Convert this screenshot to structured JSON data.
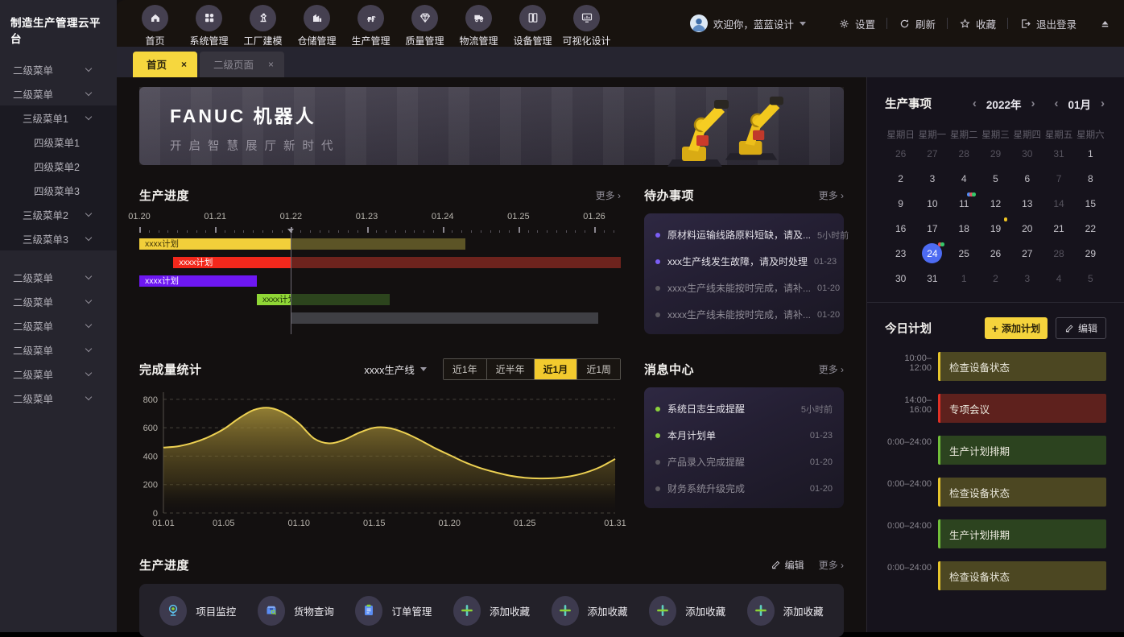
{
  "app": {
    "title": "制造生产管理云平台"
  },
  "sidebar": {
    "items": [
      {
        "label": "二级菜单",
        "level": 2,
        "chevron": true
      },
      {
        "label": "二级菜单",
        "level": 2,
        "chevron": true
      },
      {
        "label": "三级菜单1",
        "level": 3,
        "chevron": true,
        "group": true
      },
      {
        "label": "四级菜单1",
        "level": 4,
        "group": true
      },
      {
        "label": "四级菜单2",
        "level": 4,
        "group": true
      },
      {
        "label": "四级菜单3",
        "level": 4,
        "group": true
      },
      {
        "label": "三级菜单2",
        "level": 3,
        "chevron": true,
        "group": true
      },
      {
        "label": "三级菜单3",
        "level": 3,
        "chevron": true,
        "group": true
      },
      {
        "label": "二级菜单",
        "level": 2,
        "chevron": true,
        "gap": true
      },
      {
        "label": "二级菜单",
        "level": 2,
        "chevron": true
      },
      {
        "label": "二级菜单",
        "level": 2,
        "chevron": true
      },
      {
        "label": "二级菜单",
        "level": 2,
        "chevron": true
      },
      {
        "label": "二级菜单",
        "level": 2,
        "chevron": true
      },
      {
        "label": "二级菜单",
        "level": 2,
        "chevron": true
      }
    ]
  },
  "topnav": {
    "items": [
      {
        "label": "首页",
        "icon": "home"
      },
      {
        "label": "系统管理",
        "icon": "modules"
      },
      {
        "label": "工厂建模",
        "icon": "robot-arm"
      },
      {
        "label": "仓储管理",
        "icon": "warehouse"
      },
      {
        "label": "生产管理",
        "icon": "forklift"
      },
      {
        "label": "质量管理",
        "icon": "gem"
      },
      {
        "label": "物流管理",
        "icon": "truck"
      },
      {
        "label": "设备管理",
        "icon": "equipment"
      },
      {
        "label": "可视化设计",
        "icon": "visual-design"
      }
    ]
  },
  "header": {
    "welcome": "欢迎你，蓝蓝设计",
    "actions": [
      {
        "label": "设置",
        "icon": "gear"
      },
      {
        "label": "刷新",
        "icon": "refresh"
      },
      {
        "label": "收藏",
        "icon": "star"
      },
      {
        "label": "退出登录",
        "icon": "logout"
      }
    ]
  },
  "tabs": [
    {
      "label": "首页",
      "active": true
    },
    {
      "label": "二级页面",
      "active": false
    }
  ],
  "banner": {
    "title": "FANUC  机器人",
    "subtitle": "开启智慧展厅新时代"
  },
  "gantt": {
    "title": "生产进度",
    "more": "更多 ›",
    "day_labels": [
      "01.20",
      "01.21",
      "01.22",
      "01.23",
      "01.24",
      "01.25",
      "01.26"
    ],
    "span_days": 6.35,
    "marker_day": 2,
    "rows": [
      {
        "label": "xxxx计划",
        "start": 0,
        "split": 2,
        "end": 4.3,
        "bright": "#f2cf3a",
        "dim": "#5c5426",
        "text": "#3a3008"
      },
      {
        "label": "xxxx计划",
        "start": 0.45,
        "split": 2,
        "end": 6.35,
        "bright": "#f3281c",
        "dim": "#6e231d",
        "text": "#ffffff"
      },
      {
        "label": "xxxx计划",
        "start": 0,
        "split": 1.55,
        "end": 1.55,
        "bright": "#6d17f2",
        "dim": null,
        "text": "#ffffff"
      },
      {
        "label": "xxxx计划",
        "start": 1.55,
        "split": 2,
        "end": 3.3,
        "bright": "#8fd636",
        "dim": "#2c441d",
        "text": "#1d3107"
      },
      {
        "label": "",
        "start": 2,
        "split": 6.05,
        "end": 6.05,
        "bright": "#3f3f44",
        "dim": null,
        "text": "#ffffff"
      }
    ]
  },
  "todo": {
    "title": "待办事项",
    "more": "更多 ›",
    "items": [
      {
        "text": "原材料运输线路原料短缺，请及...",
        "time": "5小时前",
        "dot": "#7b5ef5",
        "unread": true
      },
      {
        "text": "xxx生产线发生故障，请及时处理",
        "time": "01-23",
        "dot": "#7b5ef5",
        "unread": true
      },
      {
        "text": "xxxx生产线未能按时完成，请补...",
        "time": "01-20",
        "dot": "#5a575f",
        "unread": false
      },
      {
        "text": "xxxx生产线未能按时完成，请补...",
        "time": "01-20",
        "dot": "#5a575f",
        "unread": false
      }
    ]
  },
  "completion": {
    "title": "完成量统计",
    "dropdown": "xxxx生产线",
    "ranges": [
      "近1年",
      "近半年",
      "近1月",
      "近1周"
    ],
    "active_range": "近1月"
  },
  "chart_data": {
    "type": "area",
    "title": "完成量统计",
    "x_days": [
      1,
      2,
      3,
      4,
      5,
      6,
      7,
      8,
      9,
      10,
      11,
      12,
      13,
      14,
      15,
      16,
      17,
      18,
      19,
      20,
      21,
      22,
      23,
      24,
      25,
      26,
      27,
      28,
      29,
      30,
      31
    ],
    "values": [
      460,
      470,
      495,
      535,
      590,
      665,
      725,
      740,
      705,
      630,
      525,
      490,
      515,
      565,
      600,
      598,
      565,
      515,
      458,
      408,
      358,
      318,
      288,
      263,
      248,
      243,
      246,
      258,
      283,
      323,
      380
    ],
    "xtick_days": [
      1,
      5,
      10,
      15,
      20,
      25,
      31
    ],
    "xtick_labels": [
      "01.01",
      "01.05",
      "01.10",
      "01.15",
      "01.20",
      "01.25",
      "01.31"
    ],
    "yticks": [
      0,
      200,
      400,
      600,
      800
    ],
    "ylim": [
      0,
      850
    ],
    "line_color": "#ecd052",
    "grid": true,
    "legend": false
  },
  "messages": {
    "title": "消息中心",
    "more": "更多 ›",
    "items": [
      {
        "text": "系统日志生成提醒",
        "time": "5小时前",
        "dot": "#8bd13c",
        "unread": true
      },
      {
        "text": "本月计划单",
        "time": "01-23",
        "dot": "#8bd13c",
        "unread": true
      },
      {
        "text": "产品录入完成提醒",
        "time": "01-20",
        "dot": "#5a575f",
        "unread": false
      },
      {
        "text": "财务系统升级完成",
        "time": "01-20",
        "dot": "#5a575f",
        "unread": false
      }
    ]
  },
  "calendar": {
    "title": "生产事项",
    "year": "2022年",
    "month": "01月",
    "weekdays": [
      "星期日",
      "星期一",
      "星期二",
      "星期三",
      "星期四",
      "星期五",
      "星期六"
    ],
    "selected_color": "#4d6bf2",
    "weeks": [
      [
        {
          "d": "26",
          "dim": true
        },
        {
          "d": "27",
          "dim": true
        },
        {
          "d": "28",
          "dim": true
        },
        {
          "d": "29",
          "dim": true
        },
        {
          "d": "30",
          "dim": true
        },
        {
          "d": "31",
          "dim": true
        },
        {
          "d": "1"
        }
      ],
      [
        {
          "d": "2"
        },
        {
          "d": "3"
        },
        {
          "d": "4"
        },
        {
          "d": "5"
        },
        {
          "d": "6"
        },
        {
          "d": "7",
          "dim": true
        },
        {
          "d": "8"
        }
      ],
      [
        {
          "d": "9"
        },
        {
          "d": "10"
        },
        {
          "d": "11",
          "dots": [
            "#4e8df5",
            "#e25563",
            "#35c96a"
          ]
        },
        {
          "d": "12"
        },
        {
          "d": "13"
        },
        {
          "d": "14",
          "dim": true
        },
        {
          "d": "15"
        }
      ],
      [
        {
          "d": "16"
        },
        {
          "d": "17"
        },
        {
          "d": "18"
        },
        {
          "d": "19",
          "dots": [
            "#f0c523"
          ]
        },
        {
          "d": "20"
        },
        {
          "d": "21"
        },
        {
          "d": "22"
        }
      ],
      [
        {
          "d": "23"
        },
        {
          "d": "24",
          "sel": true,
          "dots": [
            "#e2534f",
            "#35c96a"
          ]
        },
        {
          "d": "25"
        },
        {
          "d": "26"
        },
        {
          "d": "27"
        },
        {
          "d": "28",
          "dim": true
        },
        {
          "d": "29"
        }
      ],
      [
        {
          "d": "30"
        },
        {
          "d": "31"
        },
        {
          "d": "1",
          "dim": true
        },
        {
          "d": "2",
          "dim": true
        },
        {
          "d": "3",
          "dim": true
        },
        {
          "d": "4",
          "dim": true
        },
        {
          "d": "5",
          "dim": true
        }
      ]
    ]
  },
  "today_plan": {
    "title": "今日计划",
    "add_label": "添加计划",
    "edit_label": "编辑",
    "items": [
      {
        "time": "10:00–12:00",
        "label": "检查设备状态",
        "type": "yellow"
      },
      {
        "time": "14:00–16:00",
        "label": "专项会议",
        "type": "red"
      },
      {
        "time": "0:00–24:00",
        "label": "生产计划排期",
        "type": "green"
      },
      {
        "time": "0:00–24:00",
        "label": "检查设备状态",
        "type": "yellow"
      },
      {
        "time": "0:00–24:00",
        "label": "生产计划排期",
        "type": "green"
      },
      {
        "time": "0:00–24:00",
        "label": "检查设备状态",
        "type": "yellow"
      }
    ]
  },
  "shortcuts": {
    "title": "生产进度",
    "edit": "编辑",
    "more": "更多 ›",
    "items": [
      {
        "icon": "monitor-cam",
        "label": "项目监控"
      },
      {
        "icon": "cargo-box",
        "label": "货物查询"
      },
      {
        "icon": "order-doc",
        "label": "订单管理"
      },
      {
        "icon": "add-fav",
        "label": "添加收藏"
      },
      {
        "icon": "add-fav",
        "label": "添加收藏"
      },
      {
        "icon": "add-fav",
        "label": "添加收藏"
      },
      {
        "icon": "add-fav",
        "label": "添加收藏"
      }
    ]
  },
  "colors": {
    "accent_yellow": "#f5d33c",
    "selected_day_blue": "#4d6bf2"
  }
}
